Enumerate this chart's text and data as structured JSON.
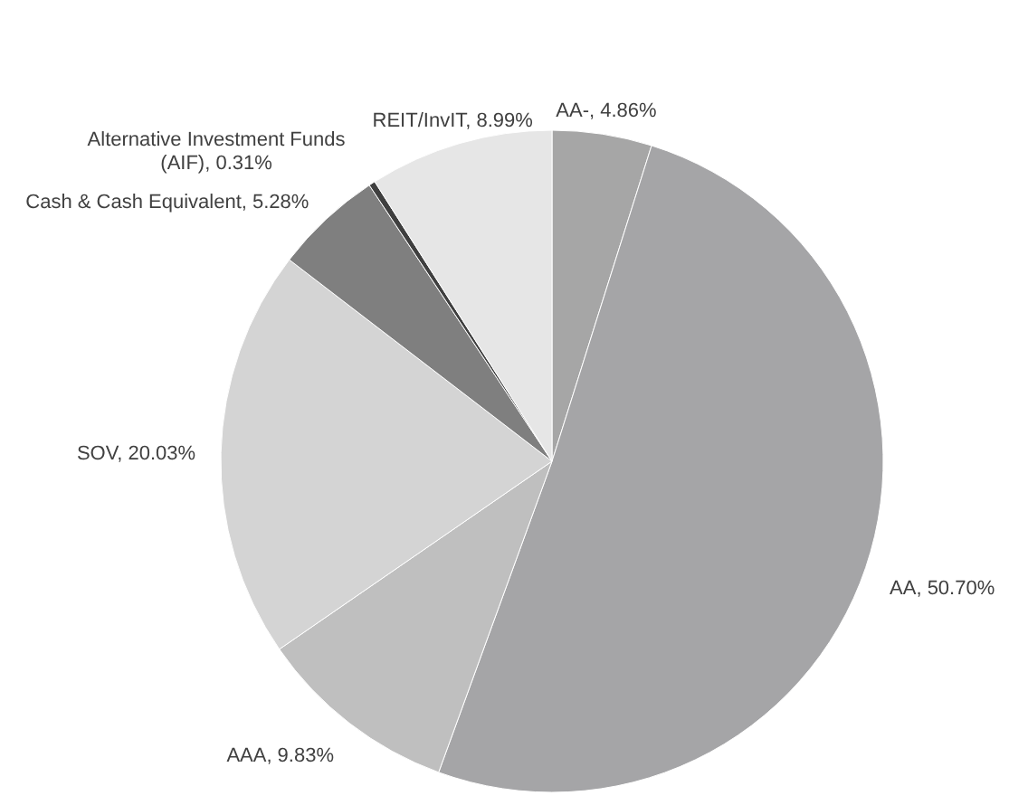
{
  "chart_data": {
    "type": "pie",
    "categories": [
      "AA-",
      "AA",
      "AAA",
      "SOV",
      "Cash & Cash Equivalent",
      "Alternative Investment Funds (AIF)",
      "REIT/InvIT"
    ],
    "values": [
      4.86,
      50.7,
      9.83,
      20.03,
      5.28,
      0.31,
      8.99
    ],
    "value_labels": [
      "4.86%",
      "50.70%",
      "9.83%",
      "20.03%",
      "5.28%",
      "0.31%",
      "8.99%"
    ],
    "colors": [
      "#a6a6a6",
      "#a5a5a7",
      "#bfbfbf",
      "#d4d4d4",
      "#7f7f7f",
      "#3f3f3f",
      "#e6e6e6"
    ]
  }
}
